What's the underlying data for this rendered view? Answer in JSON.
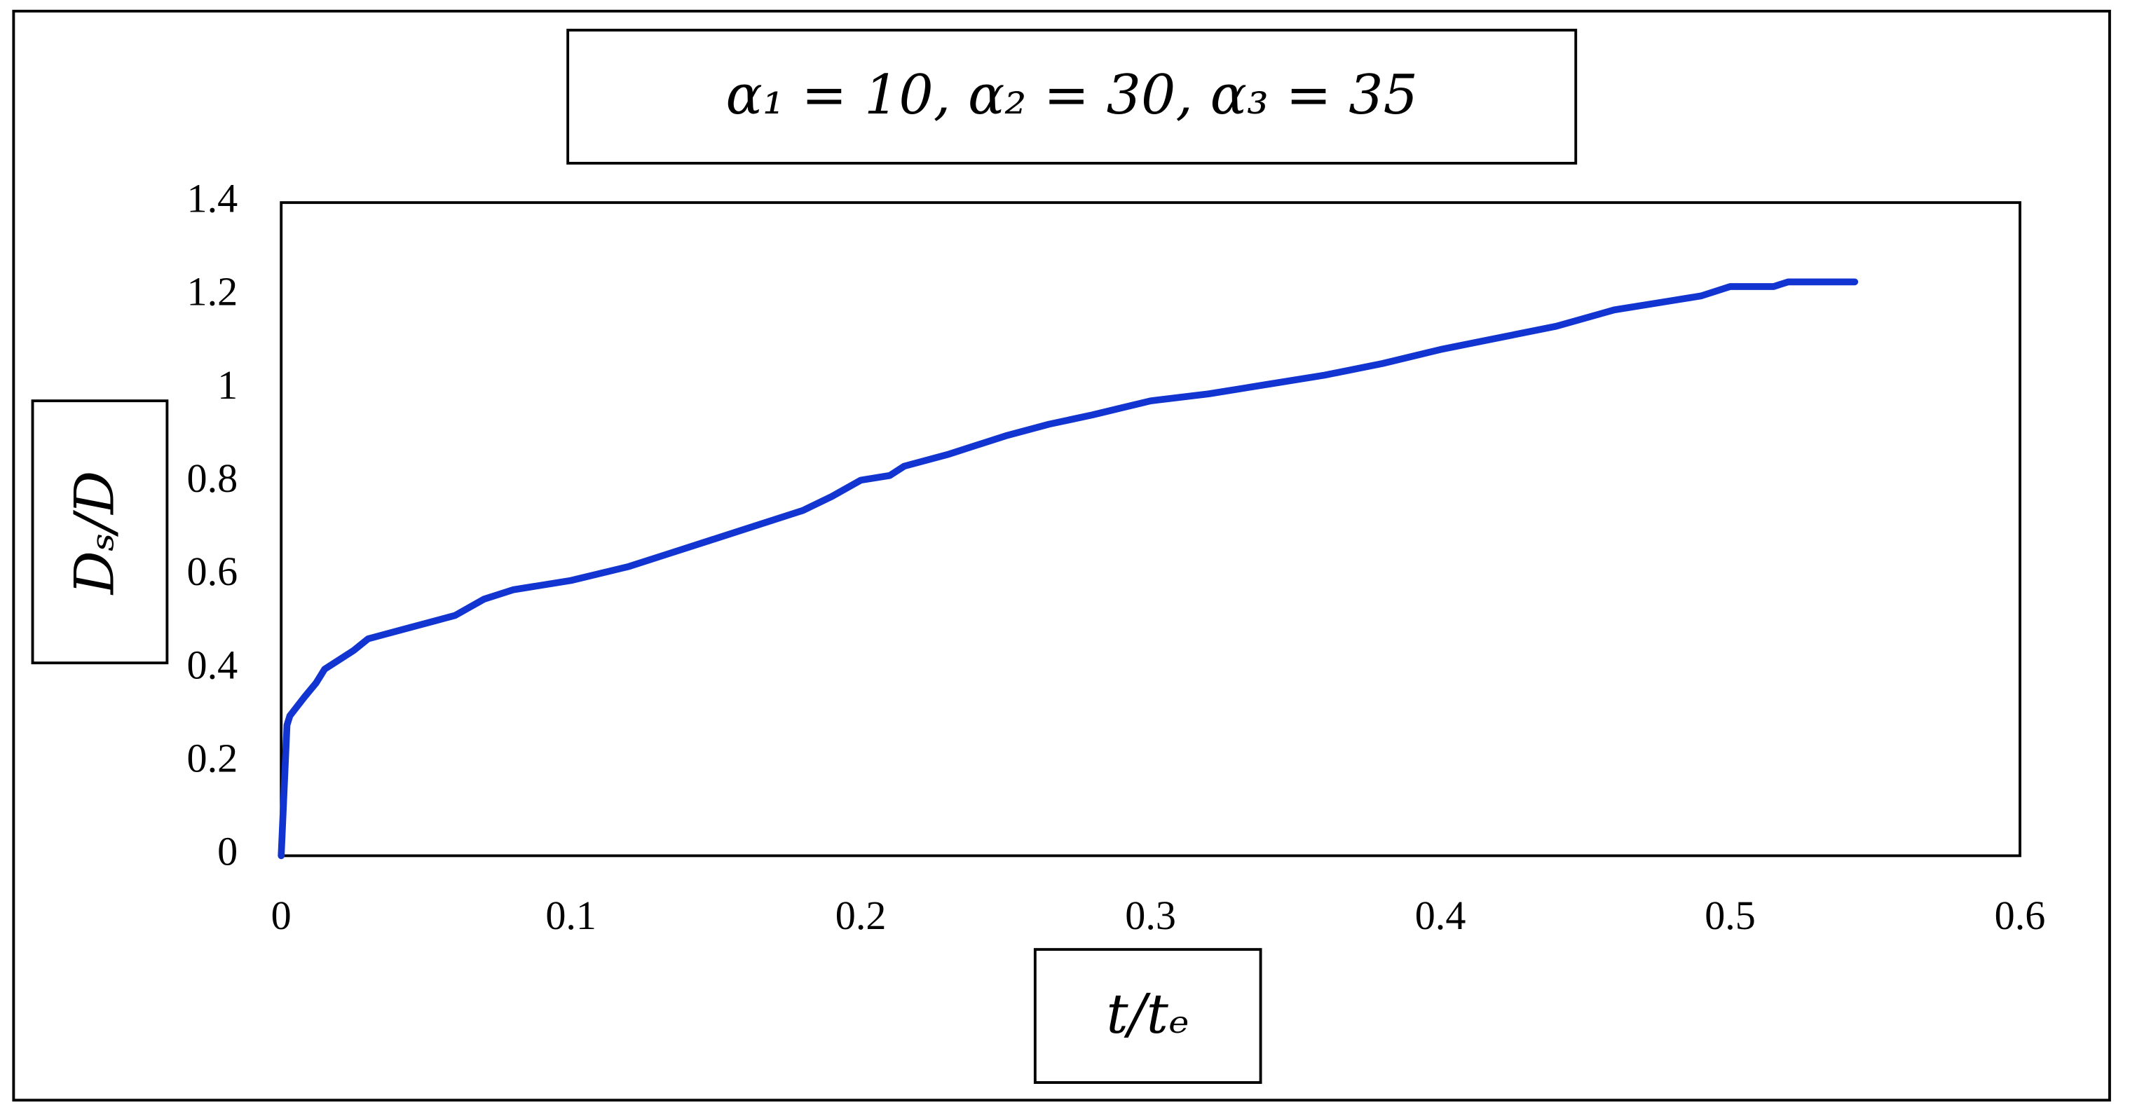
{
  "chart_data": {
    "type": "line",
    "title": "α₁ = 10, α₂ = 30, α₃ = 35",
    "x_label": "t/tₑ",
    "y_label": "Dₛ/D",
    "xlim": [
      0,
      0.6
    ],
    "xticks": [
      0,
      0.1,
      0.2,
      0.3,
      0.4,
      0.5,
      0.6
    ],
    "ylim": [
      0,
      1.4
    ],
    "yticks": [
      0,
      0.2,
      0.4,
      0.6,
      0.8,
      1,
      1.2,
      1.4
    ],
    "series": [
      {
        "color": "#1234d0",
        "x": [
          0,
          0.002,
          0.003,
          0.008,
          0.012,
          0.015,
          0.025,
          0.03,
          0.045,
          0.06,
          0.07,
          0.08,
          0.1,
          0.12,
          0.135,
          0.15,
          0.16,
          0.18,
          0.19,
          0.2,
          0.21,
          0.215,
          0.23,
          0.25,
          0.265,
          0.28,
          0.29,
          0.3,
          0.32,
          0.34,
          0.36,
          0.38,
          0.4,
          0.42,
          0.44,
          0.46,
          0.48,
          0.49,
          0.5,
          0.515,
          0.52,
          0.535,
          0.543
        ],
        "values": [
          0,
          0.28,
          0.3,
          0.34,
          0.37,
          0.4,
          0.44,
          0.465,
          0.49,
          0.515,
          0.55,
          0.57,
          0.59,
          0.62,
          0.65,
          0.68,
          0.7,
          0.74,
          0.77,
          0.805,
          0.815,
          0.835,
          0.86,
          0.9,
          0.925,
          0.945,
          0.96,
          0.975,
          0.99,
          1.01,
          1.03,
          1.055,
          1.085,
          1.11,
          1.135,
          1.17,
          1.19,
          1.2,
          1.22,
          1.22,
          1.23,
          1.23,
          1.23
        ]
      }
    ]
  }
}
